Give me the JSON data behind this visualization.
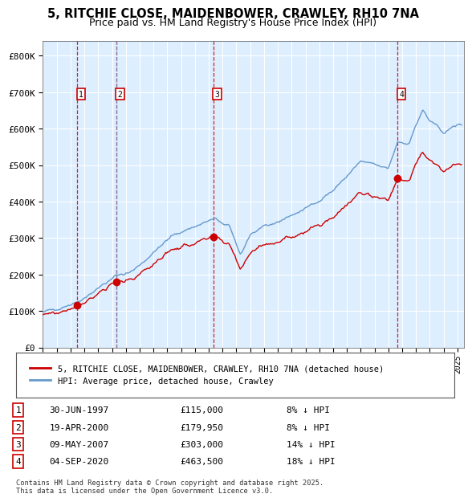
{
  "title_line1": "5, RITCHIE CLOSE, MAIDENBOWER, CRAWLEY, RH10 7NA",
  "title_line2": "Price paid vs. HM Land Registry's House Price Index (HPI)",
  "ylabel_ticks": [
    "£0",
    "£100K",
    "£200K",
    "£300K",
    "£400K",
    "£500K",
    "£600K",
    "£700K",
    "£800K"
  ],
  "ylim": [
    0,
    840000
  ],
  "sale_dates_num": [
    1997.496,
    2000.299,
    2007.354,
    2020.671
  ],
  "sale_prices": [
    115000,
    179950,
    303000,
    463500
  ],
  "sale_labels": [
    "1",
    "2",
    "3",
    "4"
  ],
  "table_rows": [
    [
      "1",
      "30-JUN-1997",
      "£115,000",
      "8% ↓ HPI"
    ],
    [
      "2",
      "19-APR-2000",
      "£179,950",
      "8% ↓ HPI"
    ],
    [
      "3",
      "09-MAY-2007",
      "£303,000",
      "14% ↓ HPI"
    ],
    [
      "4",
      "04-SEP-2020",
      "£463,500",
      "18% ↓ HPI"
    ]
  ],
  "legend_label_red": "5, RITCHIE CLOSE, MAIDENBOWER, CRAWLEY, RH10 7NA (detached house)",
  "legend_label_blue": "HPI: Average price, detached house, Crawley",
  "footer": "Contains HM Land Registry data © Crown copyright and database right 2025.\nThis data is licensed under the Open Government Licence v3.0.",
  "red_color": "#cc0000",
  "blue_color": "#6699cc",
  "bg_color": "#ddeeff",
  "grid_color": "#ffffff",
  "hpi_waypoints_x": [
    1995.0,
    1997.5,
    2000.3,
    2001.5,
    2004.5,
    2007.4,
    2008.5,
    2009.3,
    2010.0,
    2014.0,
    2016.0,
    2018.0,
    2020.0,
    2020.67,
    2021.5,
    2022.0,
    2022.5,
    2023.0,
    2024.0,
    2025.0
  ],
  "hpi_waypoints_y": [
    95000,
    125000,
    195600,
    210000,
    310000,
    352300,
    330000,
    255000,
    310000,
    380000,
    430000,
    510000,
    490000,
    565200,
    560000,
    610000,
    650000,
    620000,
    590000,
    610000
  ],
  "sale_pcts": [
    0.08,
    0.08,
    0.14,
    0.18
  ]
}
